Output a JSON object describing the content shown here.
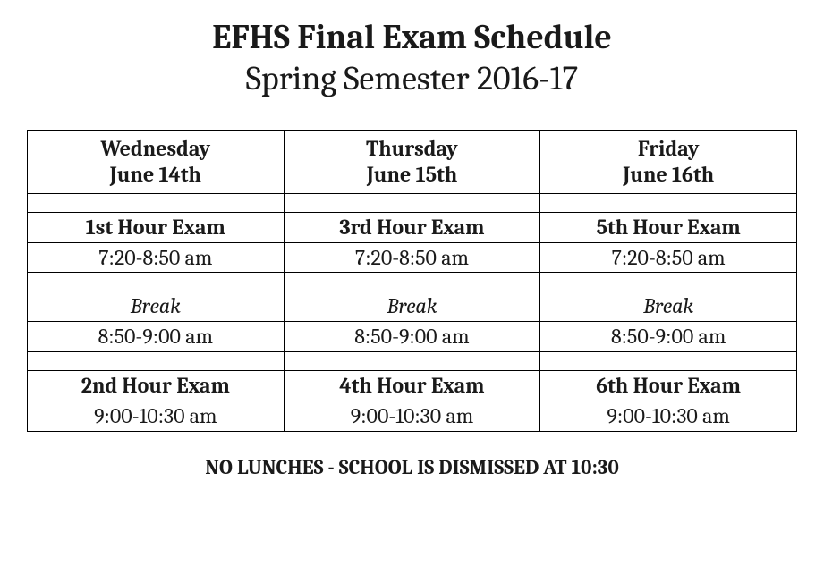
{
  "title": "EFHS Final Exam Schedule",
  "subtitle": "Spring Semester 2016-17",
  "footer_note": "NO LUNCHES - SCHOOL IS DISMISSED AT 10:30",
  "table": {
    "type": "table",
    "columns": [
      {
        "day": "Wednesday",
        "date": "June 14th"
      },
      {
        "day": "Thursday",
        "date": "June 15th"
      },
      {
        "day": "Friday",
        "date": "June 16th"
      }
    ],
    "rows": [
      {
        "cells": [
          "1st Hour Exam",
          "3rd Hour Exam",
          "5th Hour Exam"
        ],
        "style": "bold"
      },
      {
        "cells": [
          "7:20-8:50 am",
          "7:20-8:50 am",
          "7:20-8:50 am"
        ],
        "style": "normal"
      },
      {
        "cells": [
          "Break",
          "Break",
          "Break"
        ],
        "style": "italic"
      },
      {
        "cells": [
          "8:50-9:00 am",
          "8:50-9:00 am",
          "8:50-9:00 am"
        ],
        "style": "normal"
      },
      {
        "cells": [
          "2nd Hour Exam",
          "4th Hour Exam",
          "6th Hour Exam"
        ],
        "style": "bold"
      },
      {
        "cells": [
          "9:00-10:30 am",
          "9:00-10:30 am",
          "9:00-10:30 am"
        ],
        "style": "normal"
      }
    ],
    "border_color": "#000000",
    "background_color": "#ffffff",
    "text_color": "#1a1a1a",
    "header_fontsize": 24,
    "cell_fontsize": 24
  }
}
